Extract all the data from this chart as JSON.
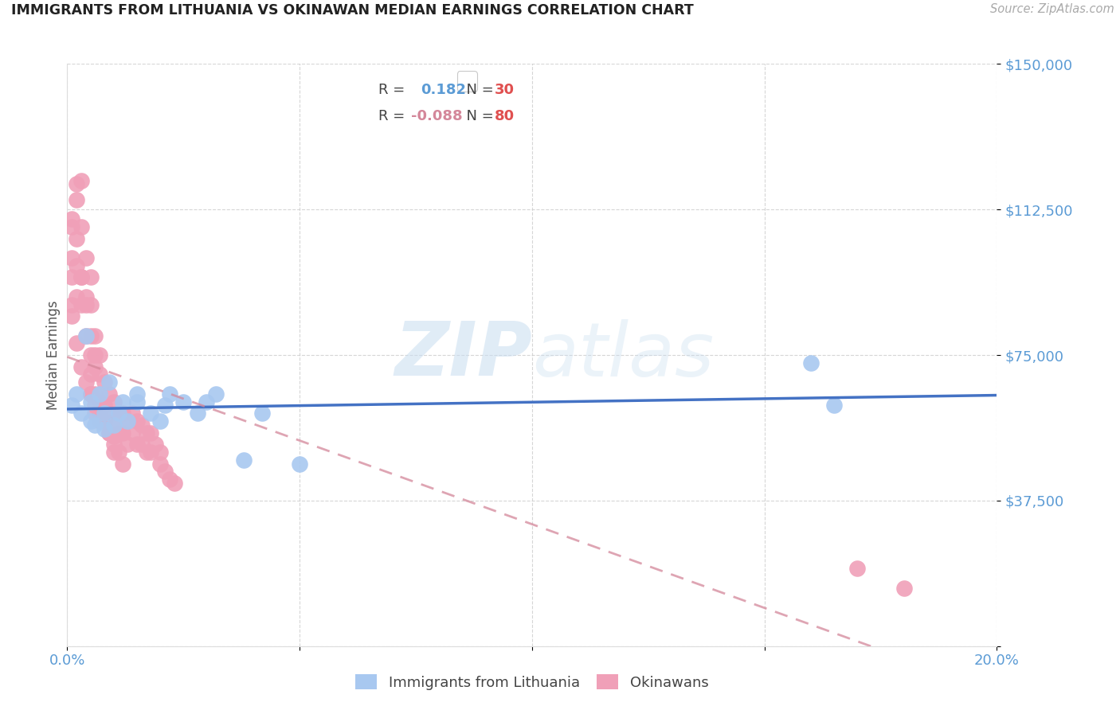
{
  "title": "IMMIGRANTS FROM LITHUANIA VS OKINAWAN MEDIAN EARNINGS CORRELATION CHART",
  "source": "Source: ZipAtlas.com",
  "ylabel": "Median Earnings",
  "yticks": [
    0,
    37500,
    75000,
    112500,
    150000
  ],
  "ytick_labels": [
    "",
    "$37,500",
    "$75,000",
    "$112,500",
    "$150,000"
  ],
  "xlim": [
    0.0,
    0.2
  ],
  "ylim": [
    0,
    150000
  ],
  "r_lithuania": 0.182,
  "n_lithuania": 30,
  "r_okinawan": -0.088,
  "n_okinawan": 80,
  "color_lithuania": "#a8c8f0",
  "color_okinawan": "#f0a0b8",
  "color_line_lithuania": "#4472c4",
  "color_line_okinawan": "#d4879a",
  "color_axis_labels": "#5b9bd5",
  "background_color": "#ffffff",
  "watermark_zip": "ZIP",
  "watermark_atlas": "atlas",
  "lithuania_points_x": [
    0.001,
    0.002,
    0.003,
    0.004,
    0.005,
    0.005,
    0.006,
    0.007,
    0.008,
    0.008,
    0.009,
    0.01,
    0.011,
    0.012,
    0.013,
    0.015,
    0.015,
    0.018,
    0.02,
    0.021,
    0.022,
    0.025,
    0.028,
    0.03,
    0.032,
    0.038,
    0.042,
    0.05,
    0.16,
    0.165
  ],
  "lithuania_points_y": [
    62000,
    65000,
    60000,
    80000,
    58000,
    63000,
    57000,
    65000,
    60000,
    56000,
    68000,
    57000,
    60000,
    63000,
    58000,
    65000,
    63000,
    60000,
    58000,
    62000,
    65000,
    63000,
    60000,
    63000,
    65000,
    48000,
    60000,
    47000,
    73000,
    62000
  ],
  "okinawan_points_x": [
    0.001,
    0.001,
    0.001,
    0.001,
    0.002,
    0.002,
    0.002,
    0.002,
    0.003,
    0.003,
    0.003,
    0.003,
    0.004,
    0.004,
    0.004,
    0.005,
    0.005,
    0.005,
    0.005,
    0.005,
    0.006,
    0.006,
    0.006,
    0.006,
    0.007,
    0.007,
    0.007,
    0.007,
    0.008,
    0.008,
    0.008,
    0.009,
    0.009,
    0.009,
    0.01,
    0.01,
    0.01,
    0.01,
    0.011,
    0.011,
    0.012,
    0.012,
    0.013,
    0.013,
    0.014,
    0.014,
    0.015,
    0.015,
    0.016,
    0.016,
    0.017,
    0.017,
    0.018,
    0.018,
    0.019,
    0.02,
    0.02,
    0.021,
    0.022,
    0.023,
    0.001,
    0.002,
    0.003,
    0.004,
    0.005,
    0.006,
    0.007,
    0.008,
    0.009,
    0.01,
    0.011,
    0.012,
    0.001,
    0.002,
    0.003,
    0.004,
    0.005,
    0.006,
    0.17,
    0.18
  ],
  "okinawan_points_y": [
    100000,
    108000,
    95000,
    88000,
    115000,
    119000,
    98000,
    90000,
    120000,
    108000,
    95000,
    88000,
    100000,
    90000,
    80000,
    95000,
    88000,
    75000,
    70000,
    65000,
    80000,
    72000,
    65000,
    60000,
    75000,
    70000,
    63000,
    58000,
    68000,
    62000,
    58000,
    65000,
    60000,
    55000,
    63000,
    58000,
    54000,
    50000,
    60000,
    55000,
    60000,
    55000,
    58000,
    52000,
    60000,
    55000,
    58000,
    52000,
    57000,
    52000,
    55000,
    50000,
    55000,
    50000,
    52000,
    50000,
    47000,
    45000,
    43000,
    42000,
    85000,
    78000,
    72000,
    68000,
    65000,
    62000,
    60000,
    58000,
    55000,
    52000,
    50000,
    47000,
    110000,
    105000,
    95000,
    88000,
    80000,
    75000,
    20000,
    15000
  ],
  "legend_r_lith_color": "#5b9bd5",
  "legend_n_lith_color": "#e05050",
  "legend_r_oki_color": "#e05070",
  "legend_n_oki_color": "#e05050"
}
